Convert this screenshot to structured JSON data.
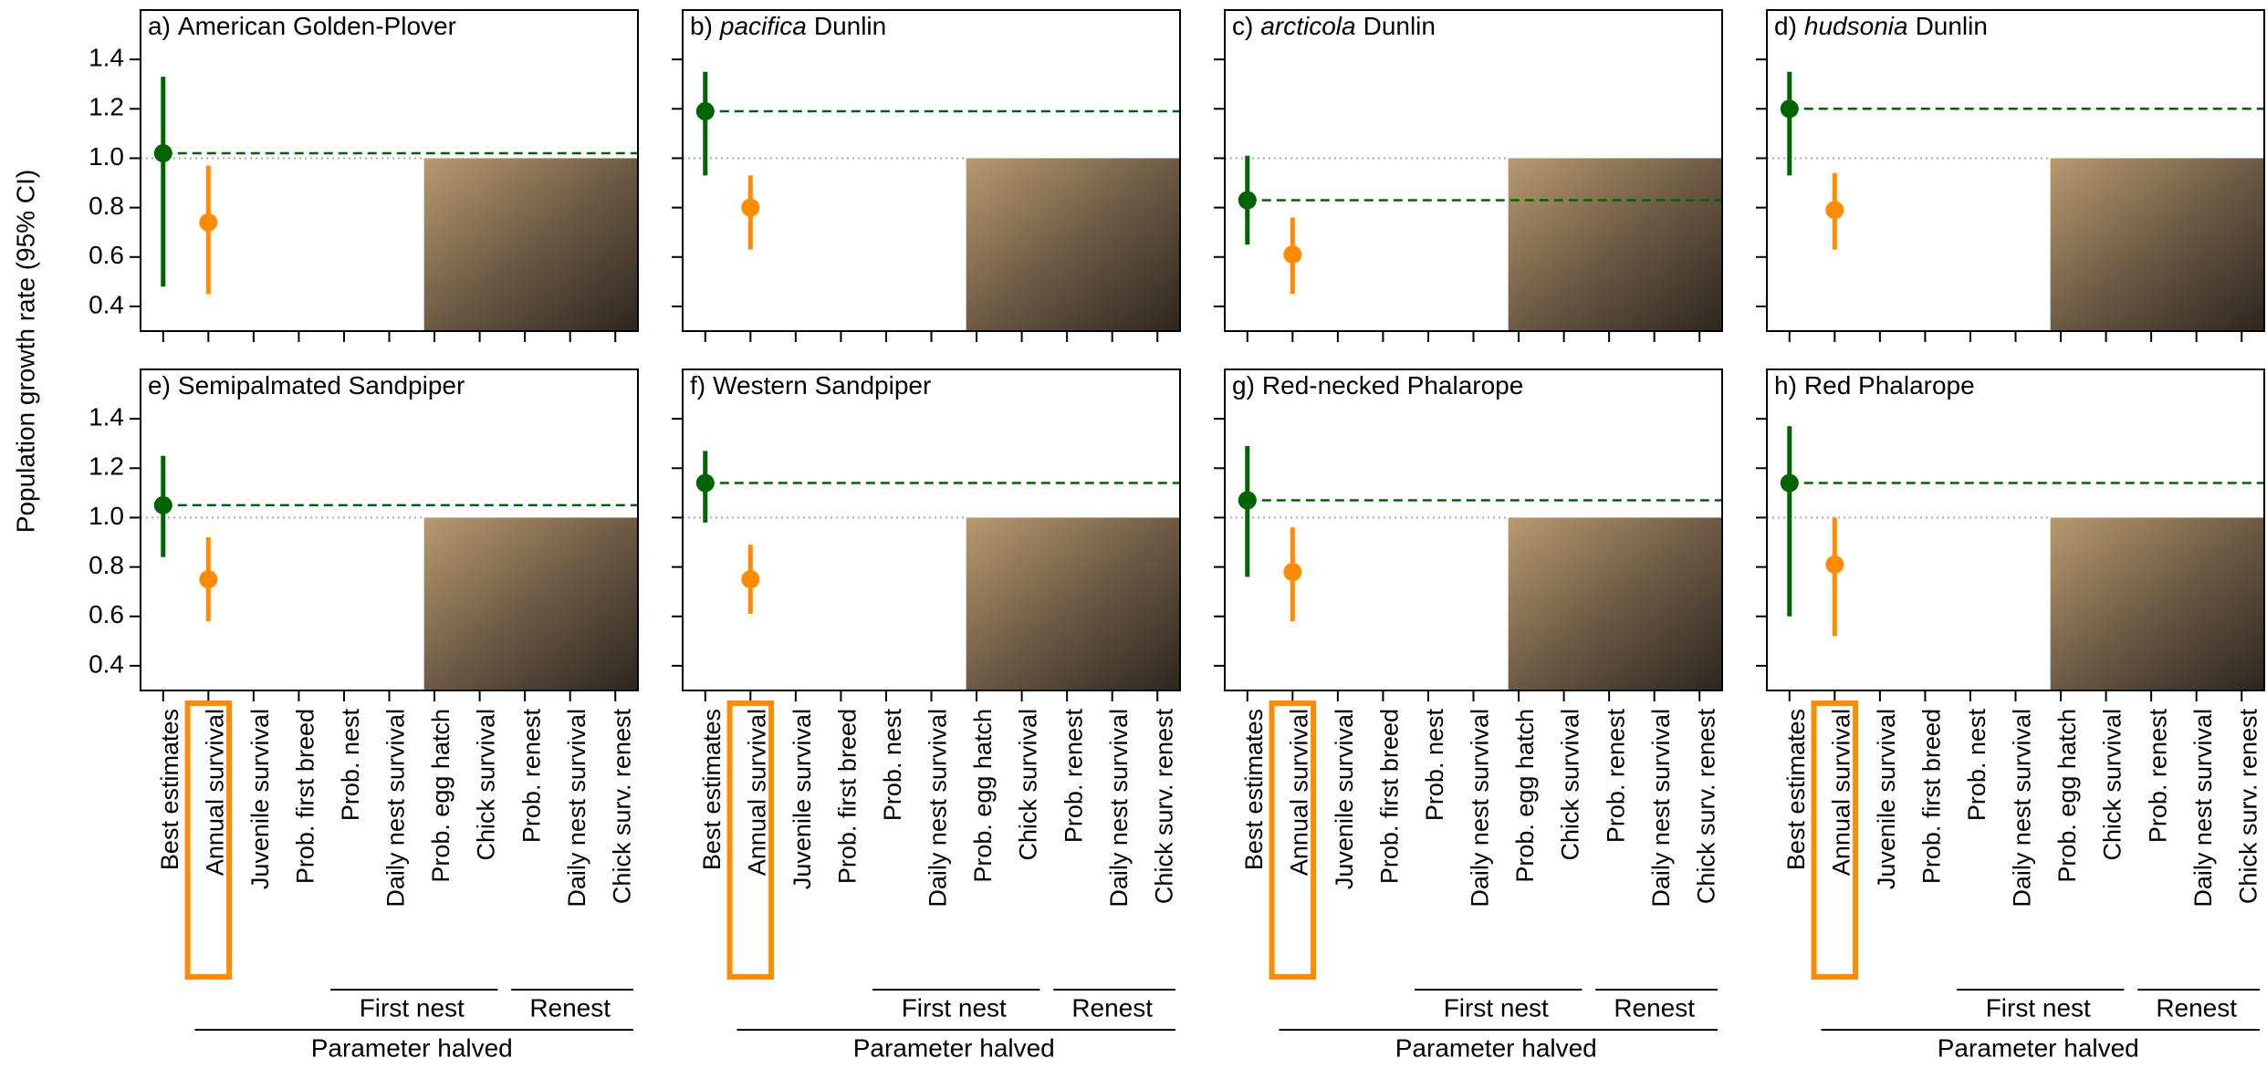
{
  "ylabel": "Population growth rate (95% CI)",
  "axes": {
    "ylim": [
      0.3,
      1.6
    ],
    "yticks": [
      0.4,
      0.6,
      0.8,
      {
        "value": 1,
        "label": "1.0"
      },
      1.2,
      1.4
    ],
    "categories": [
      "Best estimates",
      "Annual survival",
      "Juvenile survival",
      "Prob. first breed",
      "Prob. nest",
      "Daily nest survival",
      "Prob. egg hatch",
      "Chick survival",
      "Prob. renest",
      "Daily nest survival",
      "Chick surv. renest"
    ],
    "highlight_index": 1,
    "reference": 1,
    "groups": [
      {
        "label": "Parameter halved",
        "from": 1,
        "to": 10,
        "subgroups": [
          {
            "label": "First nest",
            "from": 4,
            "to": 7
          },
          {
            "label": "Renest",
            "from": 8,
            "to": 10
          }
        ]
      }
    ],
    "best_color": "#006400",
    "halved_color": "#ff8c00",
    "highlight_color": "#ff8c00"
  },
  "chart_data": [
    {
      "type": "errorpoint",
      "panel": "a)",
      "species": "American Golden-Plover",
      "values": [
        1.02,
        0.74,
        null,
        null,
        null,
        null,
        null,
        null,
        null,
        null,
        null
      ],
      "lower": [
        0.48,
        0.45,
        null,
        null,
        null,
        null,
        null,
        null,
        null,
        null,
        null
      ],
      "upper": [
        1.33,
        0.97,
        null,
        null,
        null,
        null,
        null,
        null,
        null,
        null,
        null
      ]
    },
    {
      "type": "errorpoint",
      "panel": "b)",
      "subspecies": "pacifica",
      "species": "Dunlin",
      "values": [
        1.19,
        0.8,
        null,
        null,
        null,
        null,
        null,
        null,
        null,
        null,
        null
      ],
      "lower": [
        0.93,
        0.63,
        null,
        null,
        null,
        null,
        null,
        null,
        null,
        null,
        null
      ],
      "upper": [
        1.35,
        0.93,
        null,
        null,
        null,
        null,
        null,
        null,
        null,
        null,
        null
      ]
    },
    {
      "type": "errorpoint",
      "panel": "c)",
      "subspecies": "arcticola",
      "species": "Dunlin",
      "values": [
        0.83,
        0.61,
        null,
        null,
        null,
        null,
        null,
        null,
        null,
        null,
        null
      ],
      "lower": [
        0.65,
        0.45,
        null,
        null,
        null,
        null,
        null,
        null,
        null,
        null,
        null
      ],
      "upper": [
        1.01,
        0.76,
        null,
        null,
        null,
        null,
        null,
        null,
        null,
        null,
        null
      ]
    },
    {
      "type": "errorpoint",
      "panel": "d)",
      "subspecies": "hudsonia",
      "species": "Dunlin",
      "values": [
        1.2,
        0.79,
        null,
        null,
        null,
        null,
        null,
        null,
        null,
        null,
        null
      ],
      "lower": [
        0.93,
        0.63,
        null,
        null,
        null,
        null,
        null,
        null,
        null,
        null,
        null
      ],
      "upper": [
        1.35,
        0.94,
        null,
        null,
        null,
        null,
        null,
        null,
        null,
        null,
        null
      ]
    },
    {
      "type": "errorpoint",
      "panel": "e)",
      "species": "Semipalmated Sandpiper",
      "values": [
        1.05,
        0.75,
        null,
        null,
        null,
        null,
        null,
        null,
        null,
        null,
        null
      ],
      "lower": [
        0.84,
        0.58,
        null,
        null,
        null,
        null,
        null,
        null,
        null,
        null,
        null
      ],
      "upper": [
        1.25,
        0.92,
        null,
        null,
        null,
        null,
        null,
        null,
        null,
        null,
        null
      ]
    },
    {
      "type": "errorpoint",
      "panel": "f)",
      "species": "Western Sandpiper",
      "values": [
        1.14,
        0.75,
        null,
        null,
        null,
        null,
        null,
        null,
        null,
        null,
        null
      ],
      "lower": [
        0.98,
        0.61,
        null,
        null,
        null,
        null,
        null,
        null,
        null,
        null,
        null
      ],
      "upper": [
        1.27,
        0.89,
        null,
        null,
        null,
        null,
        null,
        null,
        null,
        null,
        null
      ]
    },
    {
      "type": "errorpoint",
      "panel": "g)",
      "species": "Red-necked Phalarope",
      "values": [
        1.07,
        0.78,
        null,
        null,
        null,
        null,
        null,
        null,
        null,
        null,
        null
      ],
      "lower": [
        0.76,
        0.58,
        null,
        null,
        null,
        null,
        null,
        null,
        null,
        null,
        null
      ],
      "upper": [
        1.29,
        0.96,
        null,
        null,
        null,
        null,
        null,
        null,
        null,
        null,
        null
      ]
    },
    {
      "type": "errorpoint",
      "panel": "h)",
      "species": "Red Phalarope",
      "values": [
        1.14,
        0.81,
        null,
        null,
        null,
        null,
        null,
        null,
        null,
        null,
        null
      ],
      "lower": [
        0.6,
        0.52,
        null,
        null,
        null,
        null,
        null,
        null,
        null,
        null,
        null
      ],
      "upper": [
        1.37,
        1.0,
        null,
        null,
        null,
        null,
        null,
        null,
        null,
        null,
        null
      ]
    }
  ]
}
